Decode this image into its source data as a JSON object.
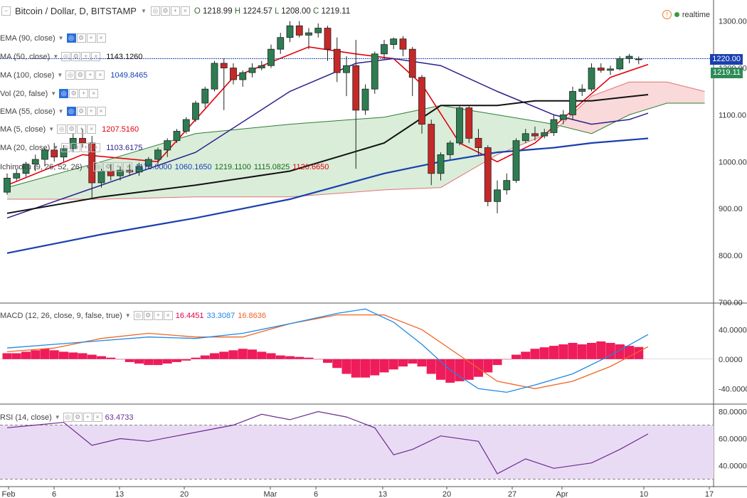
{
  "header": {
    "symbol": "Bitcoin / Dollar, D, BITSTAMP",
    "ohlc": {
      "O": "1218.99",
      "H": "1224.57",
      "L": "1208.00",
      "C": "1219.11"
    },
    "realtime": "realtime"
  },
  "indicators": [
    {
      "label": "EMA (90, close)",
      "value": "",
      "color": "#999999"
    },
    {
      "label": "MA (50, close)",
      "value": "1143.1260",
      "color": "#111111"
    },
    {
      "label": "MA (100, close)",
      "value": "1049.8465",
      "color": "#1a3fb0"
    },
    {
      "label": "Vol (20, false)",
      "value": "",
      "color": "#999999"
    },
    {
      "label": "EMA (55, close)",
      "value": "",
      "color": "#999999"
    },
    {
      "label": "MA (5, close)",
      "value": "1207.5160",
      "color": "#e3000b"
    },
    {
      "label": "MA (20, close)",
      "value": "1103.6175",
      "color": "#2a1f8f"
    },
    {
      "label": "Ichimoku (9, 26, 52, 26)",
      "values": [
        "1170.0000",
        "1060.1650",
        "1219.1100",
        "1115.0825",
        "1120.6650"
      ],
      "colors": [
        "#1a3fb0",
        "#1a3fb0",
        "#1a6b1a",
        "#1a6b1a",
        "#e3000b"
      ]
    }
  ],
  "price_tags": [
    {
      "value": "1220.00",
      "color": "#1a3fb0"
    },
    {
      "value": "1219.11",
      "color": "#2e8b57"
    }
  ],
  "macd_legend": {
    "label": "MACD (12, 26, close, 9, false, true)",
    "values": [
      "16.4451",
      "33.3087",
      "16.8636"
    ],
    "colors": [
      "#e3004a",
      "#1e88e5",
      "#f26522"
    ]
  },
  "rsi_legend": {
    "label": "RSI (14, close)",
    "value": "63.4733",
    "color": "#6a2c91"
  },
  "icons": {
    "collapse": "collapse-square-icon",
    "warning": "warning-icon",
    "status": "status-dot-icon"
  },
  "chart_data": {
    "type": "candlestick",
    "x_ticks": [
      "Feb",
      "6",
      "13",
      "20",
      "Mar",
      "6",
      "13",
      "20",
      "27",
      "Apr",
      "10",
      "17"
    ],
    "price_axis": {
      "ticks": [
        1300.0,
        1200.0,
        1100.0,
        1000.0,
        900.0,
        800.0,
        700.0
      ],
      "range": [
        700,
        1345
      ]
    },
    "candles": [
      [
        935,
        975,
        930,
        965
      ],
      [
        965,
        985,
        960,
        975
      ],
      [
        975,
        1000,
        968,
        995
      ],
      [
        995,
        1015,
        980,
        1005
      ],
      [
        1005,
        1030,
        990,
        1025
      ],
      [
        1025,
        1040,
        1000,
        1010
      ],
      [
        1010,
        1035,
        1000,
        1028
      ],
      [
        1028,
        1060,
        1020,
        1050
      ],
      [
        1050,
        1070,
        1030,
        1040
      ],
      [
        1040,
        1055,
        920,
        955
      ],
      [
        955,
        985,
        945,
        980
      ],
      [
        980,
        995,
        960,
        970
      ],
      [
        970,
        990,
        960,
        982
      ],
      [
        982,
        995,
        970,
        978
      ],
      [
        978,
        998,
        970,
        990
      ],
      [
        990,
        1010,
        985,
        1005
      ],
      [
        1005,
        1030,
        995,
        1025
      ],
      [
        1025,
        1050,
        1010,
        1045
      ],
      [
        1045,
        1070,
        1040,
        1065
      ],
      [
        1065,
        1095,
        1060,
        1090
      ],
      [
        1090,
        1130,
        1085,
        1125
      ],
      [
        1125,
        1160,
        1115,
        1155
      ],
      [
        1155,
        1215,
        1150,
        1210
      ],
      [
        1210,
        1220,
        1110,
        1200
      ],
      [
        1200,
        1210,
        1165,
        1175
      ],
      [
        1175,
        1195,
        1160,
        1190
      ],
      [
        1190,
        1210,
        1180,
        1200
      ],
      [
        1200,
        1215,
        1195,
        1205
      ],
      [
        1205,
        1250,
        1200,
        1240
      ],
      [
        1240,
        1275,
        1230,
        1265
      ],
      [
        1265,
        1300,
        1255,
        1290
      ],
      [
        1290,
        1300,
        1265,
        1270
      ],
      [
        1270,
        1285,
        1240,
        1275
      ],
      [
        1275,
        1295,
        1265,
        1285
      ],
      [
        1285,
        1290,
        1215,
        1240
      ],
      [
        1240,
        1265,
        1170,
        1190
      ],
      [
        1190,
        1225,
        1140,
        1205
      ],
      [
        1205,
        1260,
        985,
        1110
      ],
      [
        1110,
        1165,
        1100,
        1155
      ],
      [
        1155,
        1235,
        1145,
        1230
      ],
      [
        1230,
        1260,
        1220,
        1250
      ],
      [
        1250,
        1265,
        1240,
        1262
      ],
      [
        1262,
        1268,
        1225,
        1240
      ],
      [
        1240,
        1245,
        1140,
        1180
      ],
      [
        1180,
        1185,
        1060,
        1080
      ],
      [
        1080,
        1090,
        950,
        975
      ],
      [
        975,
        1020,
        960,
        1015
      ],
      [
        1015,
        1045,
        1005,
        1040
      ],
      [
        1040,
        1120,
        1035,
        1115
      ],
      [
        1115,
        1120,
        1040,
        1050
      ],
      [
        1050,
        1070,
        1015,
        1030
      ],
      [
        1030,
        1035,
        905,
        915
      ],
      [
        915,
        960,
        890,
        940
      ],
      [
        940,
        975,
        930,
        960
      ],
      [
        960,
        1050,
        955,
        1045
      ],
      [
        1045,
        1070,
        1040,
        1060
      ],
      [
        1060,
        1075,
        1045,
        1055
      ],
      [
        1055,
        1070,
        1050,
        1062
      ],
      [
        1062,
        1100,
        1055,
        1090
      ],
      [
        1090,
        1110,
        1080,
        1100
      ],
      [
        1100,
        1160,
        1090,
        1150
      ],
      [
        1150,
        1165,
        1140,
        1155
      ],
      [
        1155,
        1210,
        1150,
        1200
      ],
      [
        1200,
        1210,
        1190,
        1195
      ],
      [
        1195,
        1205,
        1185,
        1198
      ],
      [
        1198,
        1225,
        1195,
        1220
      ],
      [
        1220,
        1230,
        1210,
        1225
      ],
      [
        1218.99,
        1224.57,
        1208.0,
        1219.11
      ]
    ],
    "series": [
      {
        "name": "MA (5, close)",
        "color": "#e3000b",
        "values": [
          [
            0,
            950
          ],
          [
            8,
            1015
          ],
          [
            16,
            1000
          ],
          [
            24,
            1180
          ],
          [
            32,
            1245
          ],
          [
            37,
            1230
          ],
          [
            41,
            1220
          ],
          [
            44,
            1165
          ],
          [
            48,
            1040
          ],
          [
            52,
            1000
          ],
          [
            56,
            1040
          ],
          [
            60,
            1110
          ],
          [
            64,
            1180
          ],
          [
            68,
            1207.5
          ]
        ]
      },
      {
        "name": "MA (20, close)",
        "color": "#2a1f8f",
        "values": [
          [
            0,
            880
          ],
          [
            10,
            950
          ],
          [
            20,
            1020
          ],
          [
            30,
            1150
          ],
          [
            37,
            1210
          ],
          [
            41,
            1220
          ],
          [
            46,
            1205
          ],
          [
            52,
            1150
          ],
          [
            58,
            1100
          ],
          [
            62,
            1080
          ],
          [
            66,
            1090
          ],
          [
            68,
            1103.6
          ]
        ]
      },
      {
        "name": "MA (50, close)",
        "color": "#111111",
        "values": [
          [
            0,
            890
          ],
          [
            10,
            925
          ],
          [
            20,
            950
          ],
          [
            30,
            980
          ],
          [
            40,
            1040
          ],
          [
            46,
            1120
          ],
          [
            52,
            1120
          ],
          [
            56,
            1130
          ],
          [
            62,
            1130
          ],
          [
            68,
            1143.1
          ]
        ]
      },
      {
        "name": "MA (100, close)",
        "color": "#1a3fb0",
        "values": [
          [
            0,
            805
          ],
          [
            10,
            845
          ],
          [
            20,
            880
          ],
          [
            30,
            920
          ],
          [
            40,
            975
          ],
          [
            46,
            1000
          ],
          [
            52,
            1020
          ],
          [
            58,
            1030
          ],
          [
            62,
            1040
          ],
          [
            68,
            1049.8
          ]
        ]
      }
    ],
    "cloud": {
      "span_a": [
        [
          0,
          945
        ],
        [
          10,
          1000
        ],
        [
          20,
          1060
        ],
        [
          30,
          1080
        ],
        [
          40,
          1095
        ],
        [
          46,
          1120
        ],
        [
          52,
          1100
        ],
        [
          58,
          1080
        ],
        [
          62,
          1060
        ],
        [
          66,
          1100
        ],
        [
          70,
          1125
        ],
        [
          74,
          1125
        ]
      ],
      "span_b": [
        [
          0,
          920
        ],
        [
          10,
          920
        ],
        [
          20,
          925
        ],
        [
          30,
          925
        ],
        [
          40,
          940
        ],
        [
          46,
          945
        ],
        [
          52,
          1015
        ],
        [
          58,
          1065
        ],
        [
          62,
          1140
        ],
        [
          66,
          1170
        ],
        [
          70,
          1170
        ],
        [
          74,
          1150
        ]
      ]
    },
    "macd": {
      "axis": {
        "ticks": [
          40.0,
          0.0,
          -40.0
        ],
        "range": [
          -60,
          75
        ]
      },
      "macd": [
        [
          0,
          15
        ],
        [
          5,
          20
        ],
        [
          10,
          25
        ],
        [
          15,
          30
        ],
        [
          20,
          28
        ],
        [
          25,
          35
        ],
        [
          30,
          48
        ],
        [
          35,
          62
        ],
        [
          38,
          68
        ],
        [
          41,
          50
        ],
        [
          44,
          20
        ],
        [
          47,
          -15
        ],
        [
          50,
          -40
        ],
        [
          53,
          -45
        ],
        [
          56,
          -35
        ],
        [
          60,
          -20
        ],
        [
          64,
          5
        ],
        [
          68,
          33.3
        ]
      ],
      "signal": [
        [
          0,
          10
        ],
        [
          5,
          15
        ],
        [
          10,
          28
        ],
        [
          15,
          35
        ],
        [
          20,
          30
        ],
        [
          25,
          30
        ],
        [
          30,
          48
        ],
        [
          35,
          60
        ],
        [
          40,
          60
        ],
        [
          44,
          40
        ],
        [
          48,
          5
        ],
        [
          52,
          -30
        ],
        [
          56,
          -40
        ],
        [
          60,
          -30
        ],
        [
          64,
          -10
        ],
        [
          68,
          16.9
        ]
      ],
      "histogram": [
        8,
        8,
        10,
        12,
        14,
        12,
        10,
        9,
        8,
        6,
        4,
        2,
        0,
        -4,
        -6,
        -8,
        -8,
        -6,
        -4,
        -2,
        2,
        5,
        8,
        10,
        12,
        14,
        13,
        10,
        8,
        5,
        4,
        3,
        2,
        0,
        -5,
        -12,
        -20,
        -25,
        -25,
        -22,
        -18,
        -14,
        -10,
        -6,
        -10,
        -20,
        -28,
        -32,
        -30,
        -28,
        -24,
        -18,
        -8,
        0,
        6,
        10,
        14,
        16,
        18,
        20,
        22,
        20,
        22,
        24,
        22,
        20,
        18,
        16.4
      ]
    },
    "rsi": {
      "axis": {
        "ticks": [
          80.0,
          60.0,
          40.0
        ],
        "range": [
          25,
          85
        ]
      },
      "values": [
        [
          0,
          68
        ],
        [
          3,
          70
        ],
        [
          6,
          72
        ],
        [
          9,
          55
        ],
        [
          12,
          60
        ],
        [
          15,
          58
        ],
        [
          18,
          62
        ],
        [
          21,
          66
        ],
        [
          24,
          70
        ],
        [
          27,
          78
        ],
        [
          30,
          74
        ],
        [
          33,
          80
        ],
        [
          36,
          76
        ],
        [
          39,
          68
        ],
        [
          41,
          48
        ],
        [
          43,
          52
        ],
        [
          46,
          62
        ],
        [
          50,
          58
        ],
        [
          52,
          34
        ],
        [
          55,
          45
        ],
        [
          58,
          38
        ],
        [
          62,
          42
        ],
        [
          65,
          52
        ],
        [
          68,
          63.47
        ]
      ]
    }
  }
}
